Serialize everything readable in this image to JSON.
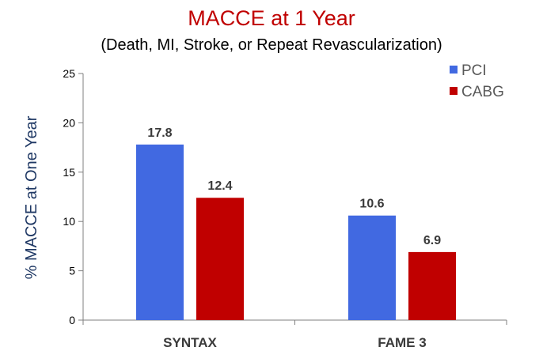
{
  "chart_data": {
    "type": "bar",
    "title": "MACCE at 1 Year",
    "subtitle": "(Death, MI, Stroke, or Repeat Revascularization)",
    "ylabel": "% MACCE at One Year",
    "xlabel": "",
    "categories": [
      "SYNTAX",
      "FAME 3"
    ],
    "series": [
      {
        "name": "PCI",
        "color": "#4169e1",
        "values": [
          17.8,
          10.6
        ]
      },
      {
        "name": "CABG",
        "color": "#c00000",
        "values": [
          12.4,
          6.9
        ]
      }
    ],
    "data_labels": [
      [
        "17.8",
        "10.6"
      ],
      [
        "12.4",
        "6.9"
      ]
    ],
    "ylim": [
      0,
      25
    ],
    "yticks": [
      0,
      5,
      10,
      15,
      20,
      25
    ],
    "ytick_labels": [
      "0",
      "5",
      "10",
      "15",
      "20",
      "25"
    ],
    "grid": false,
    "legend_position": "top-right"
  }
}
